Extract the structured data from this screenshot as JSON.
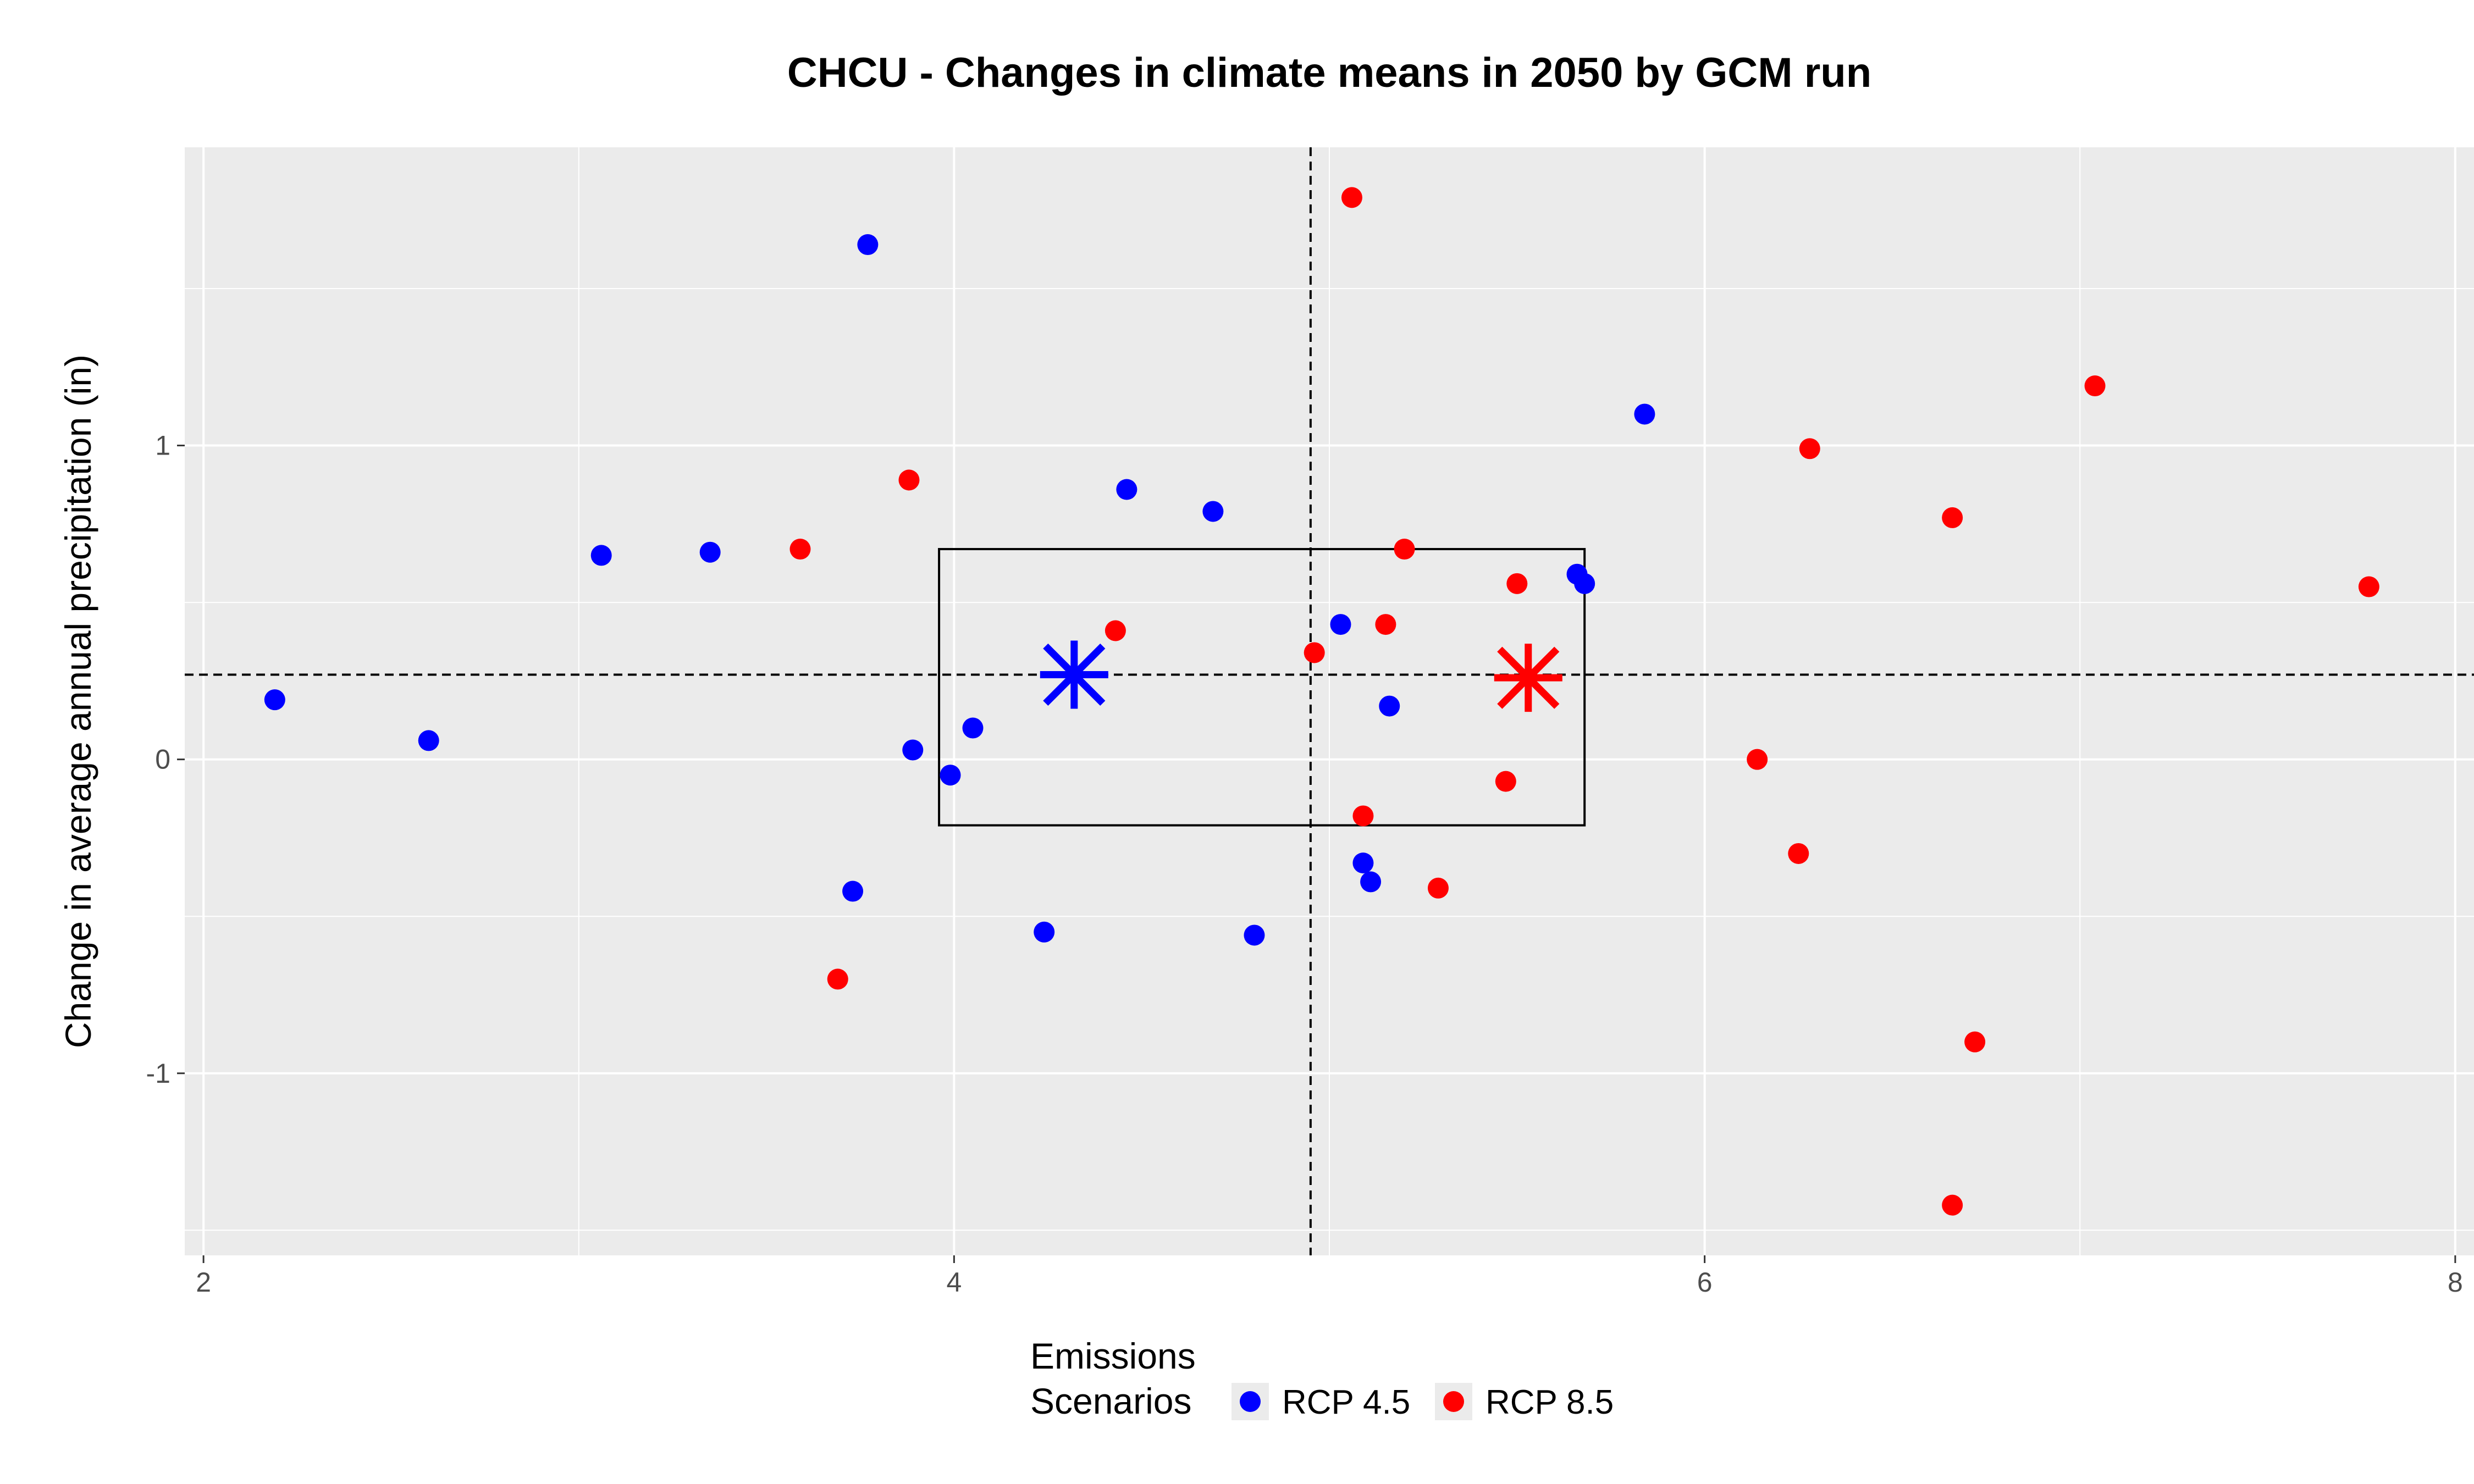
{
  "chart_data": {
    "type": "scatter",
    "title": "CHCU - Changes in climate means in 2050 by GCM run",
    "xlabel": "",
    "ylabel": "Change in average annual precipitation (in)",
    "xlim": [
      1.95,
      8.05
    ],
    "ylim": [
      -1.58,
      1.95
    ],
    "x_ticks": [
      2,
      4,
      6,
      8
    ],
    "x_tick_labels": [
      "2",
      "4",
      "6",
      "8"
    ],
    "y_ticks": [
      -1,
      0,
      1
    ],
    "y_tick_labels": [
      "-1",
      "0",
      "1"
    ],
    "grid": true,
    "legend": {
      "position": "bottom",
      "title_lines": [
        "Emissions",
        "Scenarios"
      ]
    },
    "reference_lines": {
      "vertical_x": 4.95,
      "horizontal_y": 0.27
    },
    "central_box": {
      "x_min": 3.96,
      "x_max": 5.68,
      "y_min": -0.21,
      "y_max": 0.67
    },
    "series": [
      {
        "name": "RCP 4.5",
        "color": "#0000FF",
        "mean": [
          4.32,
          0.27
        ],
        "points": [
          [
            2.19,
            0.19
          ],
          [
            2.6,
            0.06
          ],
          [
            3.06,
            0.65
          ],
          [
            3.35,
            0.66
          ],
          [
            3.77,
            1.64
          ],
          [
            3.73,
            -0.42
          ],
          [
            3.89,
            0.03
          ],
          [
            3.99,
            -0.05
          ],
          [
            4.05,
            0.1
          ],
          [
            4.24,
            -0.55
          ],
          [
            4.46,
            0.86
          ],
          [
            4.69,
            0.79
          ],
          [
            4.8,
            -0.56
          ],
          [
            5.03,
            0.43
          ],
          [
            5.09,
            -0.33
          ],
          [
            5.11,
            -0.39
          ],
          [
            5.16,
            0.17
          ],
          [
            5.66,
            0.59
          ],
          [
            5.68,
            0.56
          ],
          [
            5.84,
            1.1
          ]
        ]
      },
      {
        "name": "RCP 8.5",
        "color": "#FF0000",
        "mean": [
          5.53,
          0.26
        ],
        "points": [
          [
            3.59,
            0.67
          ],
          [
            3.69,
            -0.7
          ],
          [
            3.88,
            0.89
          ],
          [
            4.43,
            0.41
          ],
          [
            4.96,
            0.34
          ],
          [
            5.06,
            1.79
          ],
          [
            5.09,
            -0.18
          ],
          [
            5.15,
            0.43
          ],
          [
            5.2,
            0.67
          ],
          [
            5.29,
            -0.41
          ],
          [
            5.47,
            -0.07
          ],
          [
            5.5,
            0.56
          ],
          [
            6.14,
            0.0
          ],
          [
            6.25,
            -0.3
          ],
          [
            6.28,
            0.99
          ],
          [
            6.66,
            -1.42
          ],
          [
            6.66,
            0.77
          ],
          [
            6.72,
            -0.9
          ],
          [
            7.04,
            1.19
          ],
          [
            7.77,
            0.55
          ]
        ]
      }
    ]
  }
}
